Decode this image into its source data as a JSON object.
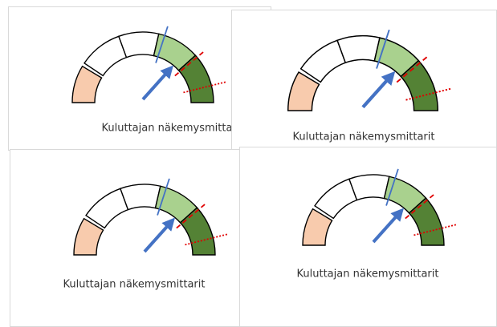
{
  "cards": [
    {
      "caption": "Kuluttajan näkemysmittarit"
    },
    {
      "caption": "Kuluttajan näkemysmittarit"
    },
    {
      "caption": "Kuluttajan näkemysmittarit"
    },
    {
      "caption": "Kuluttajan näkemysmittarit"
    }
  ]
}
